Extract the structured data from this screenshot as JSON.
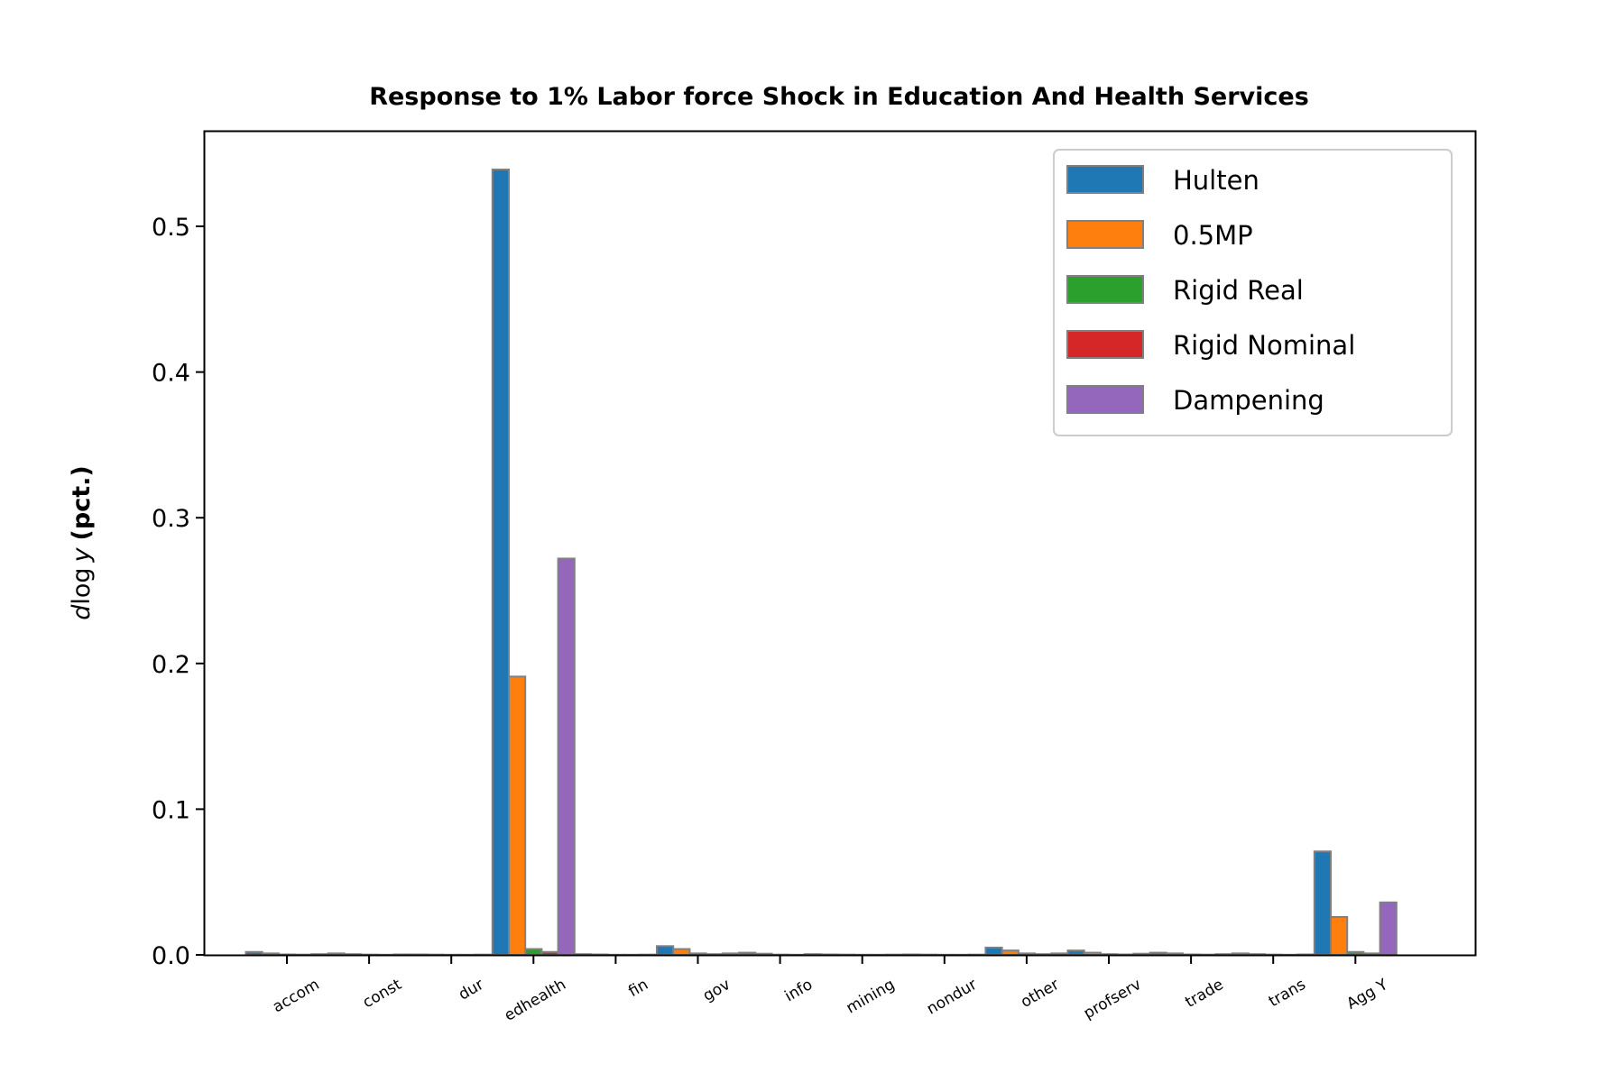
{
  "chart_data": {
    "type": "bar",
    "title": "Response to 1% Labor force Shock in Education And Health Services",
    "xlabel": "",
    "ylabel": {
      "italic": "d",
      "mid": "log",
      "italic2": "y",
      "bold": "(pct.)"
    },
    "categories": [
      "accom",
      "const",
      "dur",
      "edhealth",
      "fin",
      "gov",
      "info",
      "mining",
      "nondur",
      "other",
      "profserv",
      "trade",
      "trans",
      "Agg Y"
    ],
    "series": [
      {
        "name": "Hulten",
        "color": "#1f77b4",
        "values": [
          0.002,
          0.001,
          0.0003,
          0.539,
          0.0005,
          0.006,
          0.0015,
          0.0003,
          0.0003,
          0.005,
          0.003,
          0.0015,
          0.001,
          0.071
        ]
      },
      {
        "name": "0.5MP",
        "color": "#ff7f0e",
        "values": [
          0.001,
          0.0005,
          0.0002,
          0.191,
          0.0003,
          0.004,
          0.0008,
          0.0002,
          0.0002,
          0.003,
          0.0015,
          0.001,
          0.0005,
          0.026
        ]
      },
      {
        "name": "Rigid Real",
        "color": "#2ca02c",
        "values": [
          0.0003,
          0.0002,
          0.0001,
          0.004,
          0.0001,
          0.001,
          0.0002,
          0.0001,
          0.0001,
          0.001,
          0.0005,
          0.0003,
          0.0002,
          0.002
        ]
      },
      {
        "name": "Rigid Nominal",
        "color": "#d62728",
        "values": [
          0.0002,
          0.0001,
          0.0001,
          0.002,
          0.0001,
          0.0005,
          0.0001,
          0.0001,
          0.0001,
          0.0005,
          0.0003,
          0.0002,
          0.0001,
          0.001
        ]
      },
      {
        "name": "Dampening",
        "color": "#9467bd",
        "values": [
          0.0005,
          0.0003,
          0.0002,
          0.272,
          0.0002,
          0.001,
          0.0005,
          0.0002,
          0.0002,
          0.001,
          0.0008,
          0.0005,
          0.0003,
          0.036
        ]
      }
    ],
    "yticks": [
      "0.0",
      "0.1",
      "0.2",
      "0.3",
      "0.4",
      "0.5"
    ],
    "ylim": [
      0,
      0.565
    ],
    "grid": false,
    "legend": "top-right",
    "bar_edge_color": "#808080"
  }
}
